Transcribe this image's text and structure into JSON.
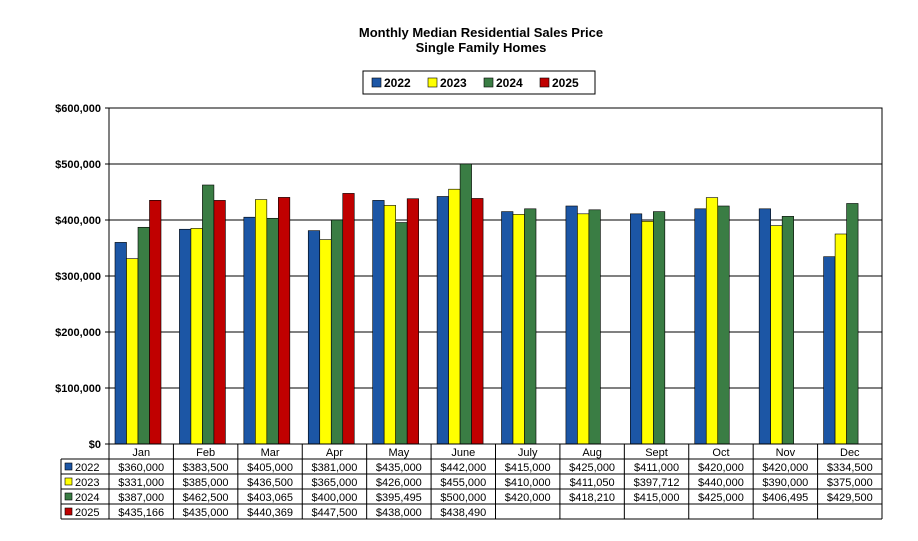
{
  "chart_data": {
    "type": "bar",
    "title": "Monthly Median Residential Sales Price",
    "subtitle": "Single Family Homes",
    "xlabel": "",
    "ylabel": "",
    "ylim": [
      0,
      600000
    ],
    "y_ticks": [
      "$0",
      "$100,000",
      "$200,000",
      "$300,000",
      "$400,000",
      "$500,000",
      "$600,000"
    ],
    "y_tick_values": [
      0,
      100000,
      200000,
      300000,
      400000,
      500000,
      600000
    ],
    "grid": true,
    "legend_position": "top-center",
    "categories": [
      "Jan",
      "Feb",
      "Mar",
      "Apr",
      "May",
      "June",
      "July",
      "Aug",
      "Sept",
      "Oct",
      "Nov",
      "Dec"
    ],
    "series": [
      {
        "name": "2022",
        "color": "#1c56a5",
        "values": [
          360000,
          383500,
          405000,
          381000,
          435000,
          442000,
          415000,
          425000,
          411000,
          420000,
          420000,
          334500
        ],
        "labels": [
          "$360,000",
          "$383,500",
          "$405,000",
          "$381,000",
          "$435,000",
          "$442,000",
          "$415,000",
          "$425,000",
          "$411,000",
          "$420,000",
          "$420,000",
          "$334,500"
        ]
      },
      {
        "name": "2023",
        "color": "#ffff00",
        "values": [
          331000,
          385000,
          436500,
          365000,
          426000,
          455000,
          410000,
          411050,
          397712,
          440000,
          390000,
          375000
        ],
        "labels": [
          "$331,000",
          "$385,000",
          "$436,500",
          "$365,000",
          "$426,000",
          "$455,000",
          "$410,000",
          "$411,050",
          "$397,712",
          "$440,000",
          "$390,000",
          "$375,000"
        ]
      },
      {
        "name": "2024",
        "color": "#3a7d44",
        "values": [
          387000,
          462500,
          403065,
          400000,
          395495,
          500000,
          420000,
          418210,
          415000,
          425000,
          406495,
          429500
        ],
        "labels": [
          "$387,000",
          "$462,500",
          "$403,065",
          "$400,000",
          "$395,495",
          "$500,000",
          "$420,000",
          "$418,210",
          "$415,000",
          "$425,000",
          "$406,495",
          "$429,500"
        ]
      },
      {
        "name": "2025",
        "color": "#c00000",
        "values": [
          435166,
          435000,
          440369,
          447500,
          438000,
          438490,
          null,
          null,
          null,
          null,
          null,
          null
        ],
        "labels": [
          "$435,166",
          "$435,000",
          "$440,369",
          "$447,500",
          "$438,000",
          "$438,490",
          "",
          "",
          "",
          "",
          "",
          ""
        ]
      }
    ]
  }
}
